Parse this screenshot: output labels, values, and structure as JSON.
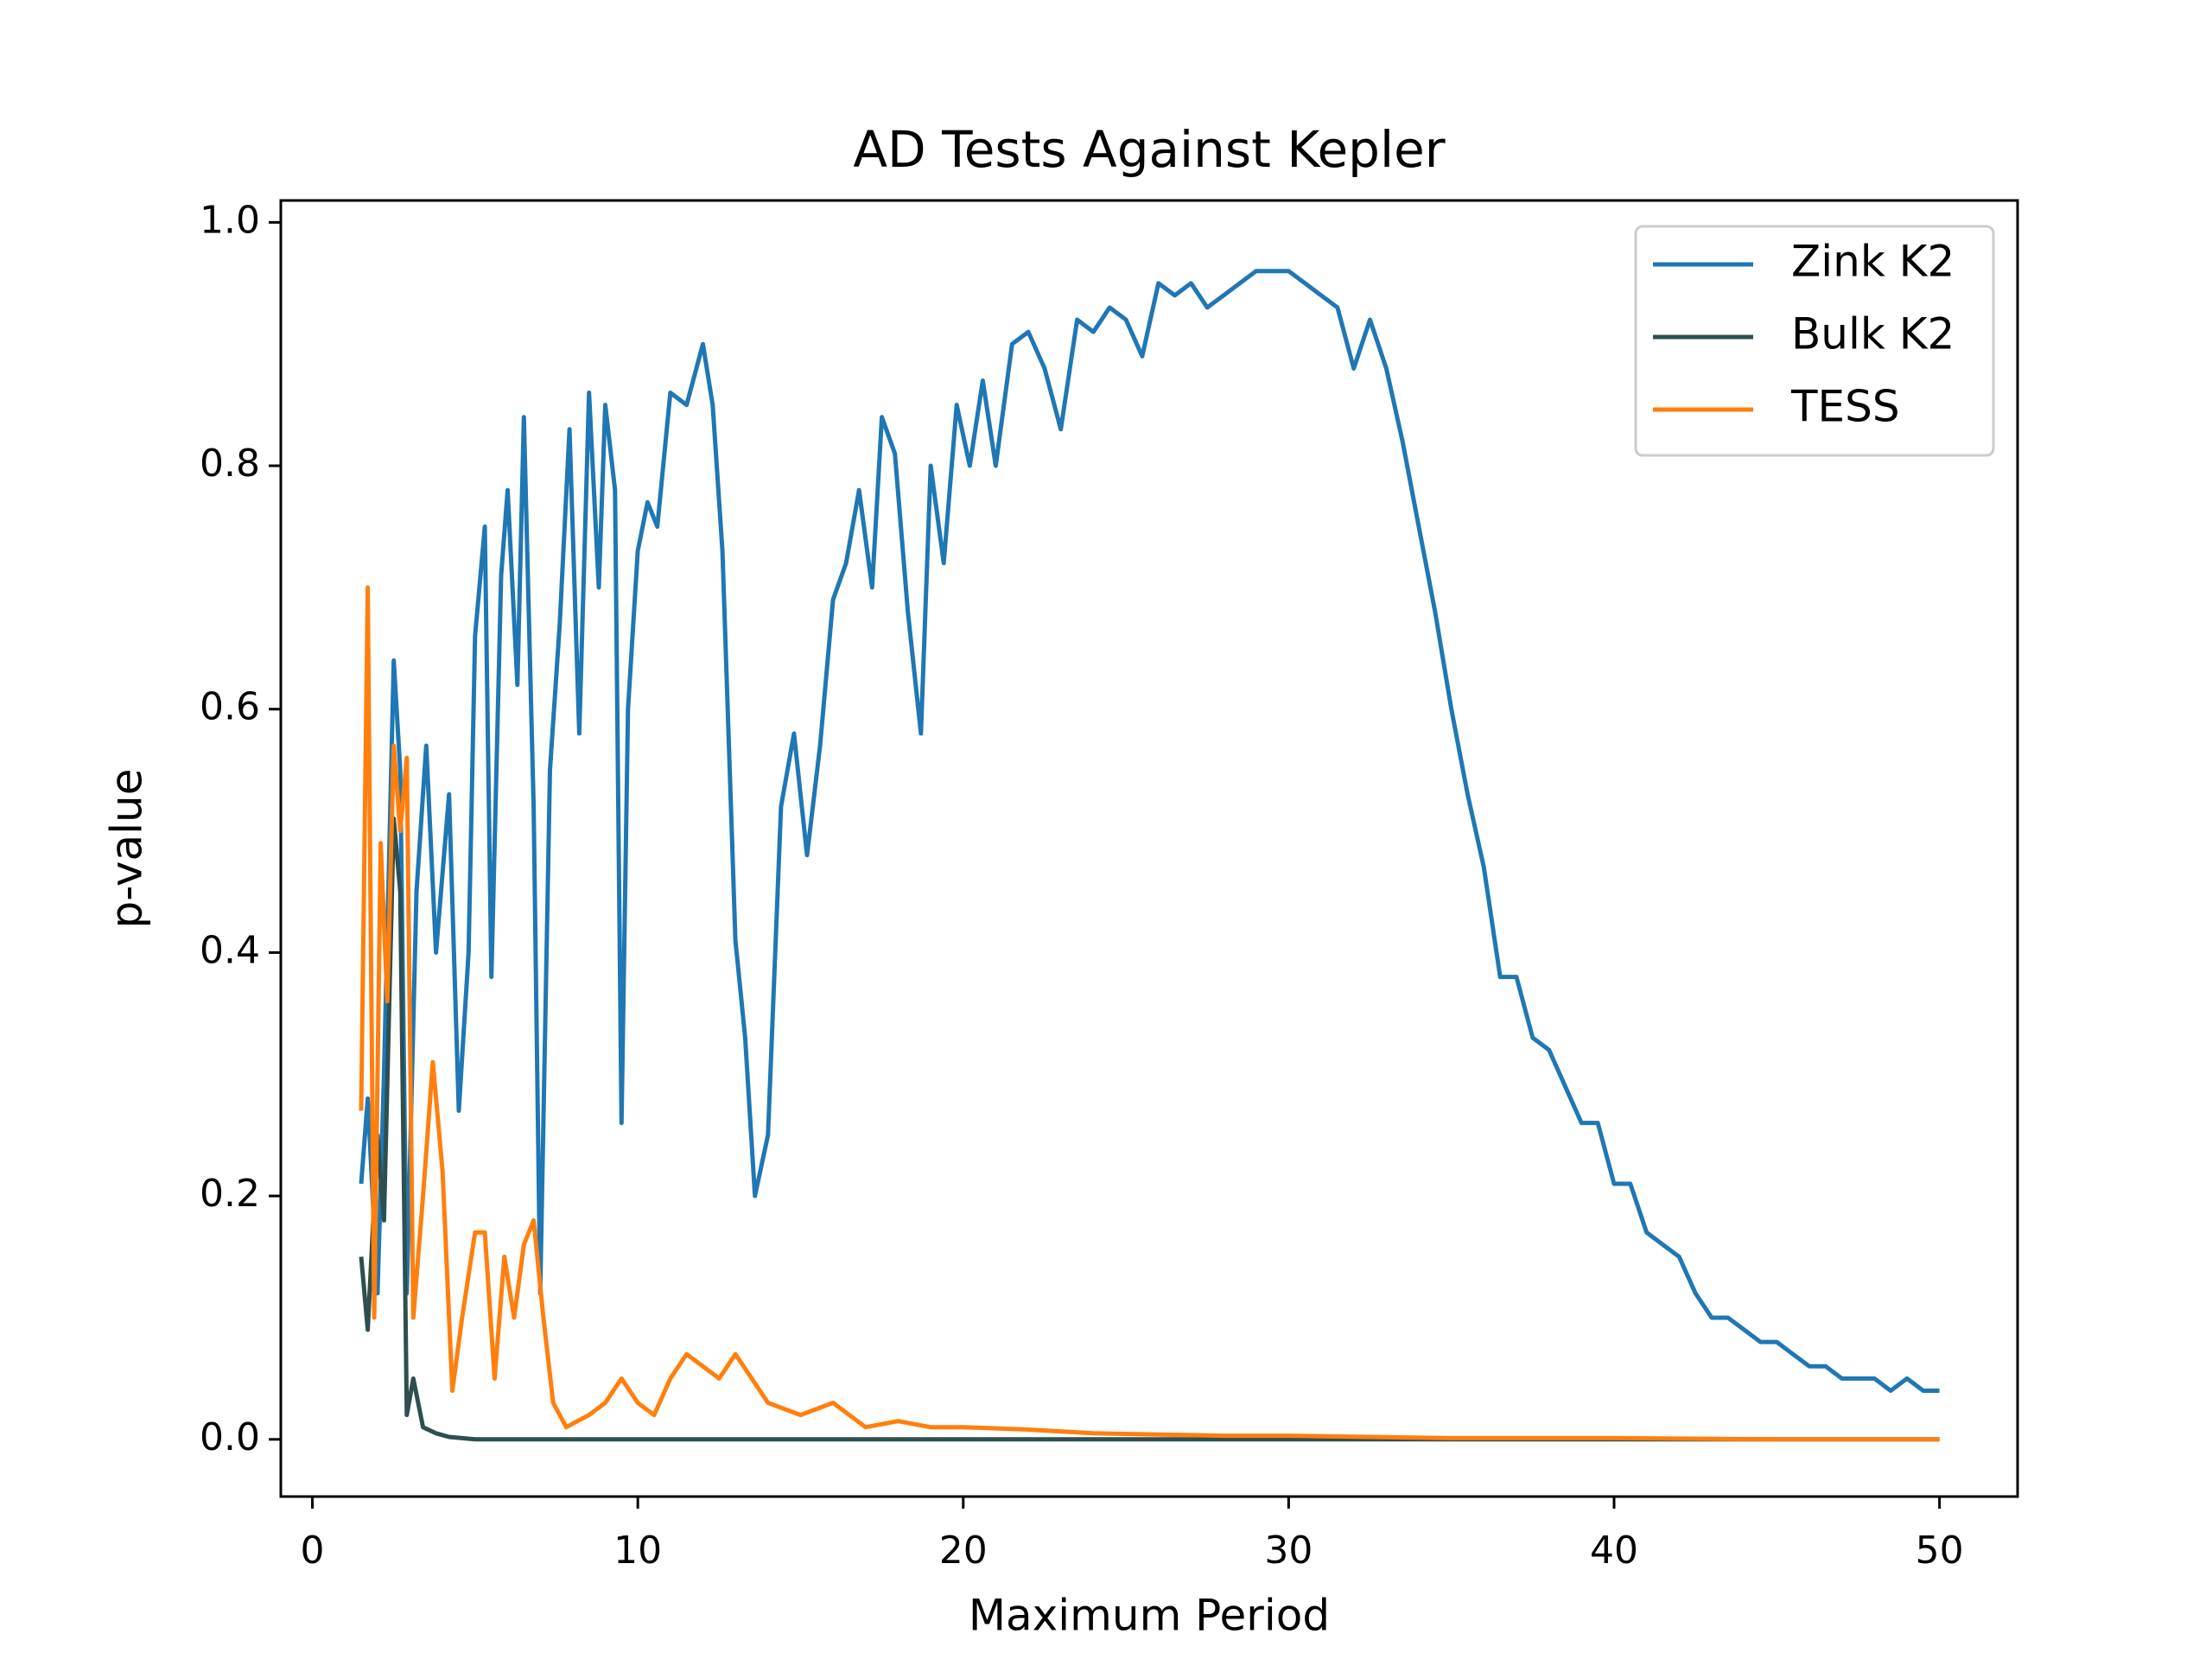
{
  "chart_data": {
    "type": "line",
    "title": "AD Tests Against Kepler",
    "xlabel": "Maximum Period",
    "ylabel": "p-value",
    "xlim": [
      -0.97,
      52.4
    ],
    "ylim": [
      -0.047,
      1.018
    ],
    "xticks": [
      0,
      10,
      20,
      30,
      40,
      50
    ],
    "yticks": [
      {
        "value": 0,
        "label": "0.0"
      },
      {
        "value": 0.2,
        "label": "0.2"
      },
      {
        "value": 0.4,
        "label": "0.4"
      },
      {
        "value": 0.6,
        "label": "0.6"
      },
      {
        "value": 0.8,
        "label": "0.8"
      },
      {
        "value": 1.0,
        "label": "1.0"
      }
    ],
    "grid": false,
    "legend": "upper right",
    "series": [
      {
        "name": "Zink K2",
        "color": "#1f77b4",
        "x": [
          1.5,
          1.7,
          2.0,
          2.2,
          2.5,
          2.7,
          2.9,
          3.2,
          3.5,
          3.8,
          4.2,
          4.5,
          4.8,
          5.0,
          5.3,
          5.5,
          5.8,
          6.0,
          6.3,
          6.5,
          6.8,
          7.0,
          7.3,
          7.6,
          7.9,
          8.2,
          8.5,
          8.8,
          9.0,
          9.3,
          9.5,
          9.7,
          10.0,
          10.3,
          10.6,
          11.0,
          11.5,
          12.0,
          12.3,
          12.6,
          13.0,
          13.3,
          13.6,
          14.0,
          14.4,
          14.8,
          15.2,
          15.6,
          16.0,
          16.4,
          16.8,
          17.2,
          17.5,
          17.9,
          18.3,
          18.7,
          19.0,
          19.4,
          19.8,
          20.2,
          20.6,
          21.0,
          21.5,
          22.0,
          22.5,
          23.0,
          23.5,
          24.0,
          24.5,
          25.0,
          25.5,
          26.0,
          26.5,
          27.0,
          27.5,
          28.0,
          28.5,
          29.0,
          29.5,
          30.0,
          30.5,
          31.0,
          31.5,
          32.0,
          32.5,
          33.0,
          33.5,
          34.0,
          34.5,
          35.0,
          35.5,
          36.0,
          36.5,
          37.0,
          37.5,
          38.0,
          38.5,
          39.0,
          39.5,
          40.0,
          40.5,
          41.0,
          41.5,
          42.0,
          42.5,
          43.0,
          43.5,
          44.0,
          44.5,
          45.0,
          45.5,
          46.0,
          46.5,
          47.0,
          47.5,
          48.0,
          48.5,
          49.0,
          49.5,
          50.0
        ],
        "values": [
          0.21,
          0.28,
          0.12,
          0.3,
          0.64,
          0.55,
          0.12,
          0.45,
          0.57,
          0.4,
          0.53,
          0.27,
          0.4,
          0.66,
          0.75,
          0.38,
          0.71,
          0.78,
          0.62,
          0.84,
          0.52,
          0.12,
          0.55,
          0.67,
          0.83,
          0.58,
          0.86,
          0.7,
          0.85,
          0.78,
          0.26,
          0.6,
          0.73,
          0.77,
          0.75,
          0.86,
          0.85,
          0.9,
          0.85,
          0.73,
          0.41,
          0.33,
          0.2,
          0.25,
          0.52,
          0.58,
          0.48,
          0.57,
          0.69,
          0.72,
          0.78,
          0.7,
          0.84,
          0.81,
          0.68,
          0.58,
          0.8,
          0.72,
          0.85,
          0.8,
          0.87,
          0.8,
          0.9,
          0.91,
          0.88,
          0.83,
          0.92,
          0.91,
          0.93,
          0.92,
          0.89,
          0.95,
          0.94,
          0.95,
          0.93,
          0.94,
          0.95,
          0.96,
          0.96,
          0.96,
          0.95,
          0.94,
          0.93,
          0.88,
          0.92,
          0.88,
          0.82,
          0.75,
          0.68,
          0.6,
          0.53,
          0.47,
          0.38,
          0.38,
          0.33,
          0.32,
          0.29,
          0.26,
          0.26,
          0.21,
          0.21,
          0.17,
          0.16,
          0.15,
          0.12,
          0.1,
          0.1,
          0.09,
          0.08,
          0.08,
          0.07,
          0.06,
          0.06,
          0.05,
          0.05,
          0.05,
          0.04,
          0.05,
          0.04,
          0.04
        ]
      },
      {
        "name": "Bulk K2",
        "color": "#2f4f4f",
        "x": [
          1.5,
          1.7,
          2.0,
          2.2,
          2.5,
          2.7,
          2.9,
          3.1,
          3.4,
          3.8,
          4.2,
          5,
          10,
          20,
          30,
          40,
          50
        ],
        "values": [
          0.15,
          0.09,
          0.25,
          0.18,
          0.51,
          0.45,
          0.02,
          0.05,
          0.01,
          0.005,
          0.002,
          0,
          0,
          0,
          0,
          0,
          0
        ]
      },
      {
        "name": "TESS",
        "color": "#ff7f0e",
        "x": [
          1.5,
          1.7,
          1.9,
          2.1,
          2.3,
          2.5,
          2.7,
          2.9,
          3.1,
          3.4,
          3.7,
          4.0,
          4.3,
          4.6,
          5.0,
          5.3,
          5.6,
          5.9,
          6.2,
          6.5,
          6.8,
          7.1,
          7.4,
          7.8,
          8.5,
          9.0,
          9.5,
          10.0,
          10.5,
          11.0,
          11.5,
          12.0,
          12.5,
          13.0,
          13.5,
          14.0,
          15.0,
          16.0,
          17.0,
          18.0,
          19.0,
          20.0,
          22.0,
          24.0,
          26.0,
          28.0,
          30.0,
          35.0,
          40.0,
          45.0,
          50.0
        ],
        "values": [
          0.27,
          0.7,
          0.1,
          0.49,
          0.36,
          0.57,
          0.5,
          0.56,
          0.1,
          0.2,
          0.31,
          0.22,
          0.04,
          0.1,
          0.17,
          0.17,
          0.05,
          0.15,
          0.1,
          0.16,
          0.18,
          0.1,
          0.03,
          0.01,
          0.02,
          0.03,
          0.05,
          0.03,
          0.02,
          0.05,
          0.07,
          0.06,
          0.05,
          0.07,
          0.05,
          0.03,
          0.02,
          0.03,
          0.01,
          0.015,
          0.01,
          0.01,
          0.008,
          0.005,
          0.004,
          0.003,
          0.003,
          0.001,
          0.001,
          0,
          0
        ]
      }
    ]
  }
}
